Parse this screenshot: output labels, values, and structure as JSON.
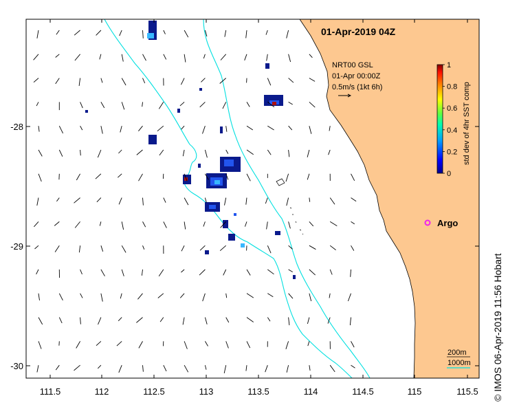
{
  "map": {
    "title": "01-Apr-2019 04Z",
    "credit": "© IMOS 06-Apr-2019 11:56 Hobart",
    "x_ticks": [
      "111.5",
      "112",
      "112.5",
      "113",
      "113.5",
      "114",
      "114.5",
      "115",
      "115.5"
    ],
    "y_ticks": [
      "-28",
      "-29",
      "-30"
    ],
    "current_legend": {
      "line1": "NRT00 GSL",
      "line2": "01-Apr 00:00Z",
      "line3": "0.5m/s (1kt 6h)"
    },
    "colorbar": {
      "label": "std dev of 4hr SST comp",
      "ticks": [
        "0",
        "0.2",
        "0.4",
        "0.6",
        "0.8",
        "1"
      ]
    },
    "marker": {
      "label": "Argo",
      "color": "#ee22ee"
    },
    "contours": {
      "c200": "200m",
      "c1000": "1000m",
      "color": "#00e0e0"
    },
    "colors": {
      "land": "#fdc890",
      "sst_dark": "#0a1a8c",
      "sst_mid": "#2255ee",
      "sst_light": "#38b8ff",
      "sst_hot": "#aa1111"
    }
  }
}
